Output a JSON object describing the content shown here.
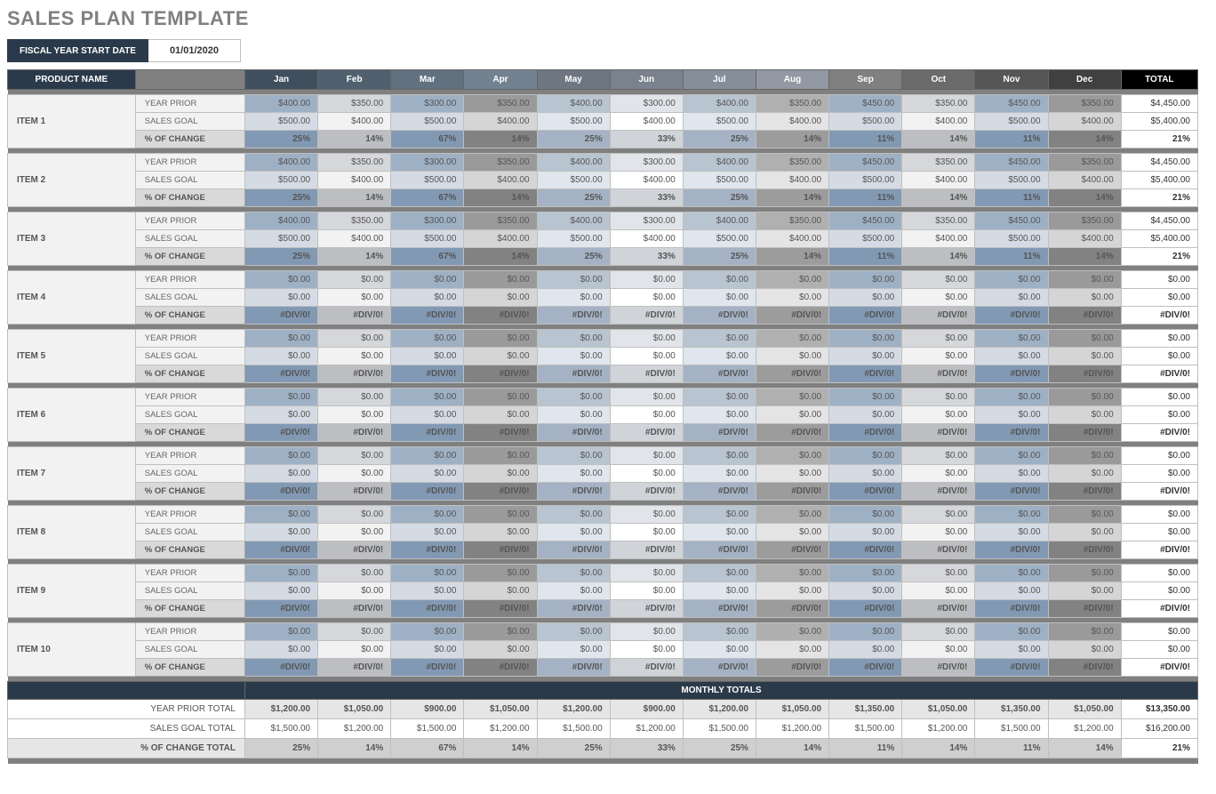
{
  "title": "SALES PLAN TEMPLATE",
  "fiscal": {
    "label": "FISCAL YEAR START DATE",
    "value": "01/01/2020"
  },
  "headers": {
    "product": "PRODUCT NAME",
    "months": [
      "Jan",
      "Feb",
      "Mar",
      "Apr",
      "May",
      "Jun",
      "Jul",
      "Aug",
      "Sep",
      "Oct",
      "Nov",
      "Dec"
    ],
    "total": "TOTAL"
  },
  "month_header_colors": [
    "#3f4f5e",
    "#50606f",
    "#617180",
    "#728291",
    "#6e7681",
    "#7a828d",
    "#868e99",
    "#9299a4",
    "#808080",
    "#6b6b6b",
    "#565656",
    "#404040"
  ],
  "row_labels": {
    "prior": "YEAR PRIOR",
    "goal": "SALES GOAL",
    "change": "% OF CHANGE"
  },
  "patterns": {
    "prior": [
      "#9eb0c4",
      "#d5d7db",
      "#9eb0c4",
      "#9a9a9a",
      "#b9c4d1",
      "#e1e4e8",
      "#b9c4d1",
      "#b0b0b0",
      "#9eb0c4",
      "#d5d7db",
      "#9eb0c4",
      "#9a9a9a"
    ],
    "goal": [
      "#d4dbe4",
      "#f2f2f2",
      "#d4dbe4",
      "#d5d5d5",
      "#e0e6ed",
      "#ffffff",
      "#e0e6ed",
      "#e4e4e4",
      "#d4dbe4",
      "#f2f2f2",
      "#d4dbe4",
      "#d5d5d5"
    ],
    "change": [
      "#8299b4",
      "#bcbec2",
      "#8299b4",
      "#828282",
      "#a4b2c4",
      "#d0d4d9",
      "#a4b2c4",
      "#9c9c9c",
      "#8299b4",
      "#bcbec2",
      "#8299b4",
      "#828282"
    ]
  },
  "items": [
    {
      "name": "ITEM 1",
      "prior": [
        "$400.00",
        "$350.00",
        "$300.00",
        "$350.00",
        "$400.00",
        "$300.00",
        "$400.00",
        "$350.00",
        "$450.00",
        "$350.00",
        "$450.00",
        "$350.00"
      ],
      "prior_total": "$4,450.00",
      "goal": [
        "$500.00",
        "$400.00",
        "$500.00",
        "$400.00",
        "$500.00",
        "$400.00",
        "$500.00",
        "$400.00",
        "$500.00",
        "$400.00",
        "$500.00",
        "$400.00"
      ],
      "goal_total": "$5,400.00",
      "change": [
        "25%",
        "14%",
        "67%",
        "14%",
        "25%",
        "33%",
        "25%",
        "14%",
        "11%",
        "14%",
        "11%",
        "14%"
      ],
      "change_total": "21%"
    },
    {
      "name": "ITEM 2",
      "prior": [
        "$400.00",
        "$350.00",
        "$300.00",
        "$350.00",
        "$400.00",
        "$300.00",
        "$400.00",
        "$350.00",
        "$450.00",
        "$350.00",
        "$450.00",
        "$350.00"
      ],
      "prior_total": "$4,450.00",
      "goal": [
        "$500.00",
        "$400.00",
        "$500.00",
        "$400.00",
        "$500.00",
        "$400.00",
        "$500.00",
        "$400.00",
        "$500.00",
        "$400.00",
        "$500.00",
        "$400.00"
      ],
      "goal_total": "$5,400.00",
      "change": [
        "25%",
        "14%",
        "67%",
        "14%",
        "25%",
        "33%",
        "25%",
        "14%",
        "11%",
        "14%",
        "11%",
        "14%"
      ],
      "change_total": "21%"
    },
    {
      "name": "ITEM 3",
      "prior": [
        "$400.00",
        "$350.00",
        "$300.00",
        "$350.00",
        "$400.00",
        "$300.00",
        "$400.00",
        "$350.00",
        "$450.00",
        "$350.00",
        "$450.00",
        "$350.00"
      ],
      "prior_total": "$4,450.00",
      "goal": [
        "$500.00",
        "$400.00",
        "$500.00",
        "$400.00",
        "$500.00",
        "$400.00",
        "$500.00",
        "$400.00",
        "$500.00",
        "$400.00",
        "$500.00",
        "$400.00"
      ],
      "goal_total": "$5,400.00",
      "change": [
        "25%",
        "14%",
        "67%",
        "14%",
        "25%",
        "33%",
        "25%",
        "14%",
        "11%",
        "14%",
        "11%",
        "14%"
      ],
      "change_total": "21%"
    },
    {
      "name": "ITEM 4",
      "prior": [
        "$0.00",
        "$0.00",
        "$0.00",
        "$0.00",
        "$0.00",
        "$0.00",
        "$0.00",
        "$0.00",
        "$0.00",
        "$0.00",
        "$0.00",
        "$0.00"
      ],
      "prior_total": "$0.00",
      "goal": [
        "$0.00",
        "$0.00",
        "$0.00",
        "$0.00",
        "$0.00",
        "$0.00",
        "$0.00",
        "$0.00",
        "$0.00",
        "$0.00",
        "$0.00",
        "$0.00"
      ],
      "goal_total": "$0.00",
      "change": [
        "#DIV/0!",
        "#DIV/0!",
        "#DIV/0!",
        "#DIV/0!",
        "#DIV/0!",
        "#DIV/0!",
        "#DIV/0!",
        "#DIV/0!",
        "#DIV/0!",
        "#DIV/0!",
        "#DIV/0!",
        "#DIV/0!"
      ],
      "change_total": "#DIV/0!"
    },
    {
      "name": "ITEM 5",
      "prior": [
        "$0.00",
        "$0.00",
        "$0.00",
        "$0.00",
        "$0.00",
        "$0.00",
        "$0.00",
        "$0.00",
        "$0.00",
        "$0.00",
        "$0.00",
        "$0.00"
      ],
      "prior_total": "$0.00",
      "goal": [
        "$0.00",
        "$0.00",
        "$0.00",
        "$0.00",
        "$0.00",
        "$0.00",
        "$0.00",
        "$0.00",
        "$0.00",
        "$0.00",
        "$0.00",
        "$0.00"
      ],
      "goal_total": "$0.00",
      "change": [
        "#DIV/0!",
        "#DIV/0!",
        "#DIV/0!",
        "#DIV/0!",
        "#DIV/0!",
        "#DIV/0!",
        "#DIV/0!",
        "#DIV/0!",
        "#DIV/0!",
        "#DIV/0!",
        "#DIV/0!",
        "#DIV/0!"
      ],
      "change_total": "#DIV/0!"
    },
    {
      "name": "ITEM 6",
      "prior": [
        "$0.00",
        "$0.00",
        "$0.00",
        "$0.00",
        "$0.00",
        "$0.00",
        "$0.00",
        "$0.00",
        "$0.00",
        "$0.00",
        "$0.00",
        "$0.00"
      ],
      "prior_total": "$0.00",
      "goal": [
        "$0.00",
        "$0.00",
        "$0.00",
        "$0.00",
        "$0.00",
        "$0.00",
        "$0.00",
        "$0.00",
        "$0.00",
        "$0.00",
        "$0.00",
        "$0.00"
      ],
      "goal_total": "$0.00",
      "change": [
        "#DIV/0!",
        "#DIV/0!",
        "#DIV/0!",
        "#DIV/0!",
        "#DIV/0!",
        "#DIV/0!",
        "#DIV/0!",
        "#DIV/0!",
        "#DIV/0!",
        "#DIV/0!",
        "#DIV/0!",
        "#DIV/0!"
      ],
      "change_total": "#DIV/0!"
    },
    {
      "name": "ITEM 7",
      "prior": [
        "$0.00",
        "$0.00",
        "$0.00",
        "$0.00",
        "$0.00",
        "$0.00",
        "$0.00",
        "$0.00",
        "$0.00",
        "$0.00",
        "$0.00",
        "$0.00"
      ],
      "prior_total": "$0.00",
      "goal": [
        "$0.00",
        "$0.00",
        "$0.00",
        "$0.00",
        "$0.00",
        "$0.00",
        "$0.00",
        "$0.00",
        "$0.00",
        "$0.00",
        "$0.00",
        "$0.00"
      ],
      "goal_total": "$0.00",
      "change": [
        "#DIV/0!",
        "#DIV/0!",
        "#DIV/0!",
        "#DIV/0!",
        "#DIV/0!",
        "#DIV/0!",
        "#DIV/0!",
        "#DIV/0!",
        "#DIV/0!",
        "#DIV/0!",
        "#DIV/0!",
        "#DIV/0!"
      ],
      "change_total": "#DIV/0!"
    },
    {
      "name": "ITEM 8",
      "prior": [
        "$0.00",
        "$0.00",
        "$0.00",
        "$0.00",
        "$0.00",
        "$0.00",
        "$0.00",
        "$0.00",
        "$0.00",
        "$0.00",
        "$0.00",
        "$0.00"
      ],
      "prior_total": "$0.00",
      "goal": [
        "$0.00",
        "$0.00",
        "$0.00",
        "$0.00",
        "$0.00",
        "$0.00",
        "$0.00",
        "$0.00",
        "$0.00",
        "$0.00",
        "$0.00",
        "$0.00"
      ],
      "goal_total": "$0.00",
      "change": [
        "#DIV/0!",
        "#DIV/0!",
        "#DIV/0!",
        "#DIV/0!",
        "#DIV/0!",
        "#DIV/0!",
        "#DIV/0!",
        "#DIV/0!",
        "#DIV/0!",
        "#DIV/0!",
        "#DIV/0!",
        "#DIV/0!"
      ],
      "change_total": "#DIV/0!"
    },
    {
      "name": "ITEM 9",
      "prior": [
        "$0.00",
        "$0.00",
        "$0.00",
        "$0.00",
        "$0.00",
        "$0.00",
        "$0.00",
        "$0.00",
        "$0.00",
        "$0.00",
        "$0.00",
        "$0.00"
      ],
      "prior_total": "$0.00",
      "goal": [
        "$0.00",
        "$0.00",
        "$0.00",
        "$0.00",
        "$0.00",
        "$0.00",
        "$0.00",
        "$0.00",
        "$0.00",
        "$0.00",
        "$0.00",
        "$0.00"
      ],
      "goal_total": "$0.00",
      "change": [
        "#DIV/0!",
        "#DIV/0!",
        "#DIV/0!",
        "#DIV/0!",
        "#DIV/0!",
        "#DIV/0!",
        "#DIV/0!",
        "#DIV/0!",
        "#DIV/0!",
        "#DIV/0!",
        "#DIV/0!",
        "#DIV/0!"
      ],
      "change_total": "#DIV/0!"
    },
    {
      "name": "ITEM 10",
      "prior": [
        "$0.00",
        "$0.00",
        "$0.00",
        "$0.00",
        "$0.00",
        "$0.00",
        "$0.00",
        "$0.00",
        "$0.00",
        "$0.00",
        "$0.00",
        "$0.00"
      ],
      "prior_total": "$0.00",
      "goal": [
        "$0.00",
        "$0.00",
        "$0.00",
        "$0.00",
        "$0.00",
        "$0.00",
        "$0.00",
        "$0.00",
        "$0.00",
        "$0.00",
        "$0.00",
        "$0.00"
      ],
      "goal_total": "$0.00",
      "change": [
        "#DIV/0!",
        "#DIV/0!",
        "#DIV/0!",
        "#DIV/0!",
        "#DIV/0!",
        "#DIV/0!",
        "#DIV/0!",
        "#DIV/0!",
        "#DIV/0!",
        "#DIV/0!",
        "#DIV/0!",
        "#DIV/0!"
      ],
      "change_total": "#DIV/0!"
    }
  ],
  "monthly_totals": {
    "header": "MONTHLY TOTALS",
    "prior_label": "YEAR PRIOR TOTAL",
    "goal_label": "SALES GOAL TOTAL",
    "change_label": "% OF CHANGE TOTAL",
    "prior": [
      "$1,200.00",
      "$1,050.00",
      "$900.00",
      "$1,050.00",
      "$1,200.00",
      "$900.00",
      "$1,200.00",
      "$1,050.00",
      "$1,350.00",
      "$1,050.00",
      "$1,350.00",
      "$1,050.00"
    ],
    "prior_total": "$13,350.00",
    "goal": [
      "$1,500.00",
      "$1,200.00",
      "$1,500.00",
      "$1,200.00",
      "$1,500.00",
      "$1,200.00",
      "$1,500.00",
      "$1,200.00",
      "$1,500.00",
      "$1,200.00",
      "$1,500.00",
      "$1,200.00"
    ],
    "goal_total": "$16,200.00",
    "change": [
      "25%",
      "14%",
      "67%",
      "14%",
      "25%",
      "33%",
      "25%",
      "14%",
      "11%",
      "14%",
      "11%",
      "14%"
    ],
    "change_total": "21%"
  }
}
